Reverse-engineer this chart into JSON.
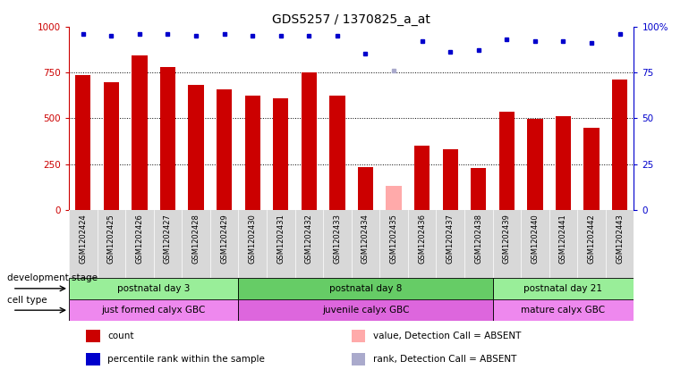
{
  "title": "GDS5257 / 1370825_a_at",
  "samples": [
    "GSM1202424",
    "GSM1202425",
    "GSM1202426",
    "GSM1202427",
    "GSM1202428",
    "GSM1202429",
    "GSM1202430",
    "GSM1202431",
    "GSM1202432",
    "GSM1202433",
    "GSM1202434",
    "GSM1202435",
    "GSM1202436",
    "GSM1202437",
    "GSM1202438",
    "GSM1202439",
    "GSM1202440",
    "GSM1202441",
    "GSM1202442",
    "GSM1202443"
  ],
  "counts": [
    735,
    695,
    840,
    780,
    680,
    658,
    625,
    610,
    750,
    625,
    235,
    130,
    350,
    330,
    230,
    535,
    495,
    510,
    450,
    710
  ],
  "absent_count_idx": 11,
  "percentile_ranks": [
    96,
    95,
    96,
    96,
    95,
    96,
    95,
    95,
    95,
    95,
    85,
    76,
    92,
    86,
    87,
    93,
    92,
    92,
    91,
    96
  ],
  "absent_rank_idx": 11,
  "bar_color": "#cc0000",
  "absent_bar_color": "#ffaaaa",
  "dot_color": "#0000cc",
  "absent_dot_color": "#aaaacc",
  "ylim_left": [
    0,
    1000
  ],
  "ylim_right": [
    0,
    100
  ],
  "yticks_left": [
    0,
    250,
    500,
    750,
    1000
  ],
  "yticks_right": [
    0,
    25,
    50,
    75,
    100
  ],
  "ytick_labels_left": [
    "0",
    "250",
    "500",
    "750",
    "1000"
  ],
  "ytick_labels_right": [
    "0",
    "25",
    "50",
    "75",
    "100%"
  ],
  "dev_stages": [
    {
      "label": "postnatal day 3",
      "start": 0,
      "end": 5,
      "color": "#99ee99"
    },
    {
      "label": "postnatal day 8",
      "start": 6,
      "end": 14,
      "color": "#66cc66"
    },
    {
      "label": "postnatal day 21",
      "start": 15,
      "end": 19,
      "color": "#99ee99"
    }
  ],
  "cell_types": [
    {
      "label": "just formed calyx GBC",
      "start": 0,
      "end": 5,
      "color": "#ee88ee"
    },
    {
      "label": "juvenile calyx GBC",
      "start": 6,
      "end": 14,
      "color": "#dd66dd"
    },
    {
      "label": "mature calyx GBC",
      "start": 15,
      "end": 19,
      "color": "#ee88ee"
    }
  ],
  "legend_items": [
    {
      "label": "count",
      "color": "#cc0000"
    },
    {
      "label": "percentile rank within the sample",
      "color": "#0000cc"
    },
    {
      "label": "value, Detection Call = ABSENT",
      "color": "#ffaaaa"
    },
    {
      "label": "rank, Detection Call = ABSENT",
      "color": "#aaaacc"
    }
  ],
  "dev_stage_label": "development stage",
  "cell_type_label": "cell type",
  "grid_color": "#888888",
  "bg_color": "#ffffff",
  "bar_width": 0.55
}
